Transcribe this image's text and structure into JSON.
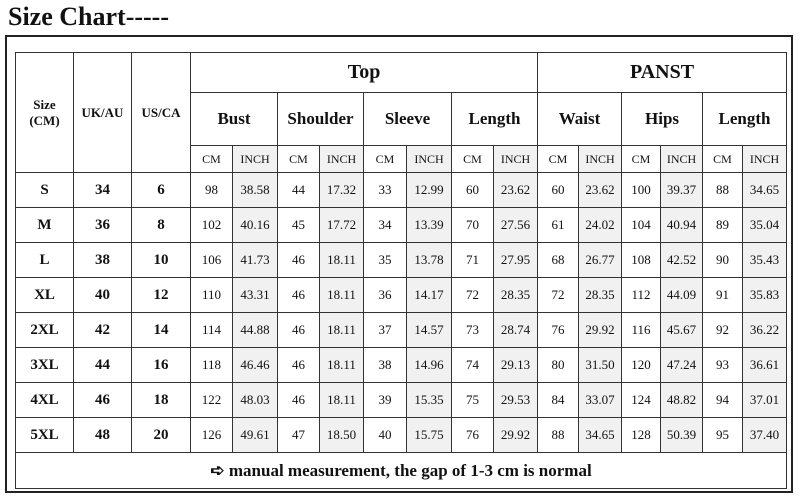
{
  "header": {
    "title": "Size Chart-----"
  },
  "table": {
    "col_headers": [
      "Size\n(CM)",
      "UK/AU",
      "US/CA"
    ],
    "groups": [
      "Top",
      "PANST"
    ],
    "measures": [
      "Bust",
      "Shoulder",
      "Sleeve",
      "Length",
      "Waist",
      "Hips",
      "Length"
    ],
    "units": [
      "CM",
      "INCH",
      "CM",
      "INCH",
      "CM",
      "INCH",
      "CM",
      "INCH",
      "CM",
      "INCH",
      "CM",
      "INCH",
      "CM",
      "INCH"
    ],
    "rows": [
      [
        "S",
        "34",
        "6",
        "98",
        "38.58",
        "44",
        "17.32",
        "33",
        "12.99",
        "60",
        "23.62",
        "60",
        "23.62",
        "100",
        "39.37",
        "88",
        "34.65"
      ],
      [
        "M",
        "36",
        "8",
        "102",
        "40.16",
        "45",
        "17.72",
        "34",
        "13.39",
        "70",
        "27.56",
        "61",
        "24.02",
        "104",
        "40.94",
        "89",
        "35.04"
      ],
      [
        "L",
        "38",
        "10",
        "106",
        "41.73",
        "46",
        "18.11",
        "35",
        "13.78",
        "71",
        "27.95",
        "68",
        "26.77",
        "108",
        "42.52",
        "90",
        "35.43"
      ],
      [
        "XL",
        "40",
        "12",
        "110",
        "43.31",
        "46",
        "18.11",
        "36",
        "14.17",
        "72",
        "28.35",
        "72",
        "28.35",
        "112",
        "44.09",
        "91",
        "35.83"
      ],
      [
        "2XL",
        "42",
        "14",
        "114",
        "44.88",
        "46",
        "18.11",
        "37",
        "14.57",
        "73",
        "28.74",
        "76",
        "29.92",
        "116",
        "45.67",
        "92",
        "36.22"
      ],
      [
        "3XL",
        "44",
        "16",
        "118",
        "46.46",
        "46",
        "18.11",
        "38",
        "14.96",
        "74",
        "29.13",
        "80",
        "31.50",
        "120",
        "47.24",
        "93",
        "36.61"
      ],
      [
        "4XL",
        "46",
        "18",
        "122",
        "48.03",
        "46",
        "18.11",
        "39",
        "15.35",
        "75",
        "29.53",
        "84",
        "33.07",
        "124",
        "48.82",
        "94",
        "37.01"
      ],
      [
        "5XL",
        "48",
        "20",
        "126",
        "49.61",
        "47",
        "18.50",
        "40",
        "15.75",
        "76",
        "29.92",
        "88",
        "34.65",
        "128",
        "50.39",
        "95",
        "37.40"
      ]
    ],
    "footer": "➪ manual measurement, the gap of 1-3 cm is normal"
  }
}
